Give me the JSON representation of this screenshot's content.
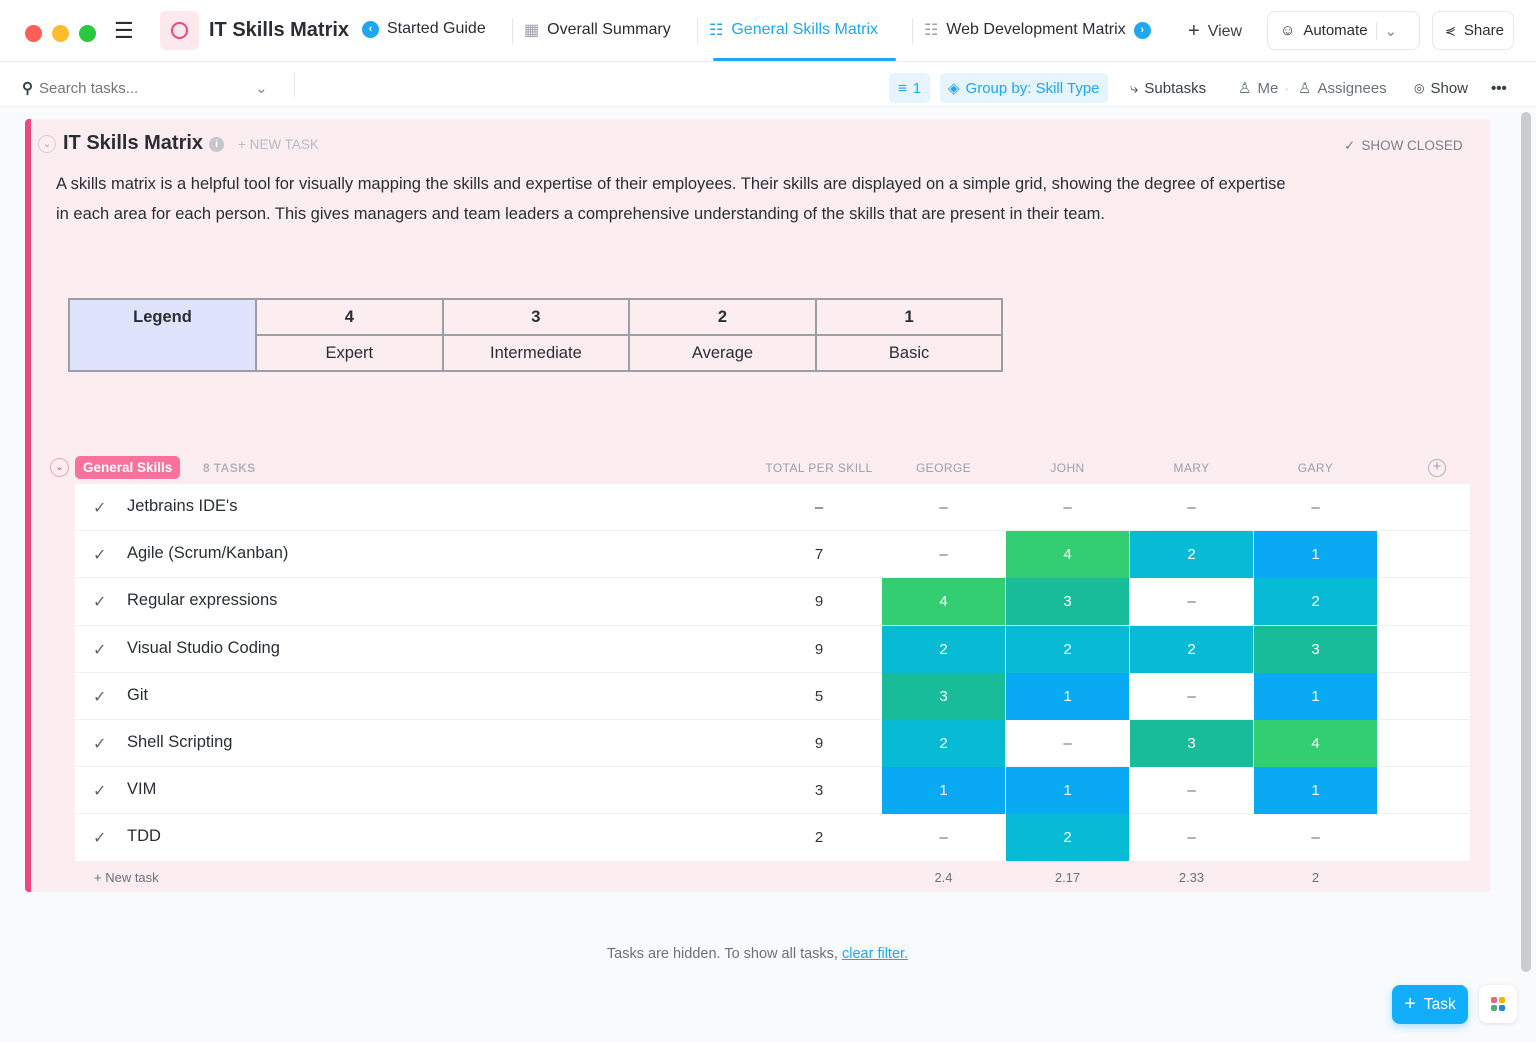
{
  "topbar": {
    "title": "IT Skills Matrix",
    "tabs": [
      {
        "label": "Started Guide",
        "icon": "chevron-left-circle-icon"
      },
      {
        "label": "Overall Summary",
        "icon": "table-icon"
      },
      {
        "label": "General Skills Matrix",
        "icon": "list-icon",
        "active": true
      },
      {
        "label": "Web Development Matrix",
        "icon": "list-icon"
      }
    ],
    "view_label": "View",
    "automate_label": "Automate",
    "share_label": "Share"
  },
  "toolbar": {
    "search_placeholder": "Search tasks...",
    "filter_count": "1",
    "group_by": "Group by: Skill Type",
    "subtasks": "Subtasks",
    "me": "Me",
    "assignees": "Assignees",
    "show": "Show"
  },
  "list": {
    "title": "IT Skills Matrix",
    "new_task": "+ NEW TASK",
    "show_closed": "SHOW CLOSED",
    "description": "A skills matrix is a helpful tool for visually mapping the skills and expertise of their employees. Their skills are displayed on a simple grid, showing the degree of expertise in each area for each person. This gives managers and team leaders a comprehensive understanding of the skills that are present in their team."
  },
  "legend": {
    "header": "Legend",
    "levels": [
      {
        "num": "4",
        "label": "Expert"
      },
      {
        "num": "3",
        "label": "Intermediate"
      },
      {
        "num": "2",
        "label": "Average"
      },
      {
        "num": "1",
        "label": "Basic"
      }
    ]
  },
  "colors": {
    "4": "#33ce71",
    "3": "#19bc98",
    "2": "#08bbd5",
    "1": "#0aa9f3",
    "accent": "#1ea7f3",
    "brand": "#f0457f"
  },
  "group": {
    "name": "General Skills",
    "count": "8 TASKS",
    "columns": [
      "TOTAL PER SKILL",
      "GEORGE",
      "JOHN",
      "MARY",
      "GARY"
    ],
    "rows": [
      {
        "name": "Jetbrains IDE's",
        "total": "–",
        "cells": [
          "–",
          "–",
          "–",
          "–"
        ]
      },
      {
        "name": "Agile (Scrum/Kanban)",
        "total": "7",
        "cells": [
          "–",
          "4",
          "2",
          "1"
        ]
      },
      {
        "name": "Regular expressions",
        "total": "9",
        "cells": [
          "4",
          "3",
          "–",
          "2"
        ]
      },
      {
        "name": "Visual Studio Coding",
        "total": "9",
        "cells": [
          "2",
          "2",
          "2",
          "3"
        ]
      },
      {
        "name": "Git",
        "total": "5",
        "cells": [
          "3",
          "1",
          "–",
          "1"
        ]
      },
      {
        "name": "Shell Scripting",
        "total": "9",
        "cells": [
          "2",
          "–",
          "3",
          "4"
        ]
      },
      {
        "name": "VIM",
        "total": "3",
        "cells": [
          "1",
          "1",
          "–",
          "1"
        ]
      },
      {
        "name": "TDD",
        "total": "2",
        "cells": [
          "–",
          "2",
          "–",
          "–"
        ]
      }
    ],
    "new_task": "+ New task",
    "averages": [
      "2.4",
      "2.17",
      "2.33",
      "2"
    ]
  },
  "footer": {
    "hidden_text": "Tasks are hidden. To show all tasks,",
    "clear_filter": "clear filter."
  },
  "fab": {
    "task_label": "Task"
  }
}
